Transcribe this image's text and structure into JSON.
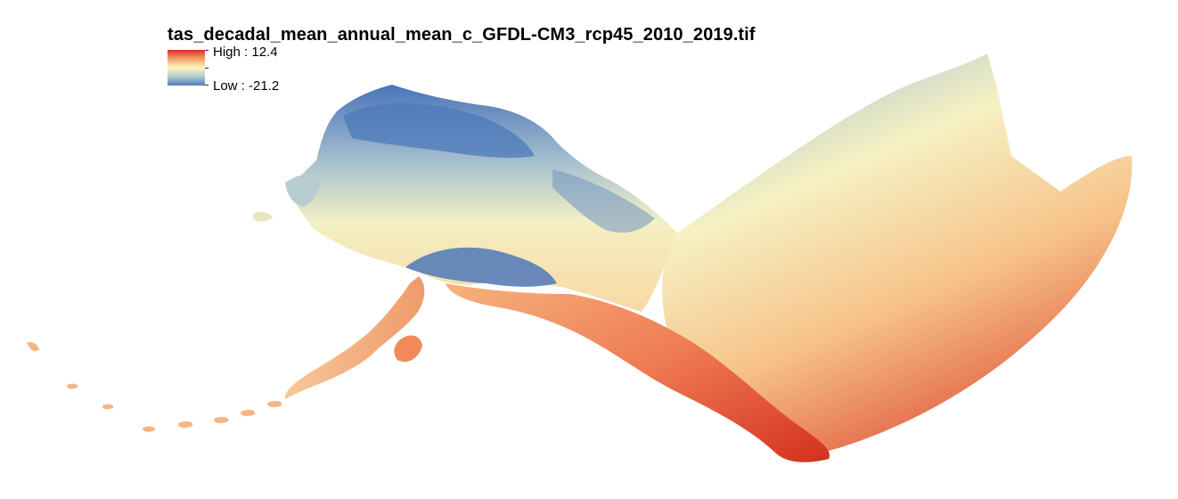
{
  "title": "tas_decadal_mean_annual_mean_c_GFDL-CM3_rcp45_2010_2019.tif",
  "legend": {
    "high_label": "High : 12.4",
    "low_label": "Low : -21.2",
    "ramp_colors": [
      "#d7301f",
      "#f4a06a",
      "#fdf6bd",
      "#b5cbcf",
      "#4f7bbc"
    ]
  },
  "map": {
    "region": "Alaska and northwestern Canada",
    "colors": {
      "cold": "#4a74b8",
      "cool": "#a9c2cf",
      "mid": "#fbf3c0",
      "warm": "#f6a772",
      "hot": "#d8352a"
    }
  }
}
